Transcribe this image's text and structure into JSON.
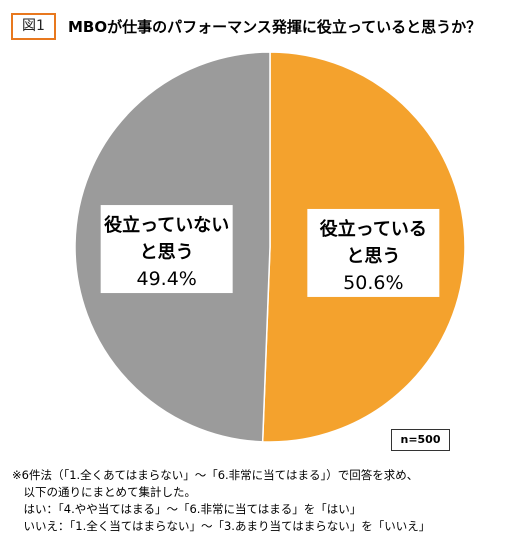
{
  "figure": {
    "label": "図1",
    "title": "MBOが仕事のパフォーマンス発揮に役立っていると思うか？",
    "sample_size": "n=500"
  },
  "chart_data": {
    "type": "pie",
    "title": "MBOが仕事のパフォーマンス発揮に役立っていると思うか？",
    "start": "12 o'clock",
    "direction": "clockwise",
    "slices": [
      {
        "label_lines": [
          "役立っている",
          "と思う"
        ],
        "value": 50.6,
        "value_label": "50.6%",
        "color": "#f4a22d"
      },
      {
        "label_lines": [
          "役立っていない",
          "と思う"
        ],
        "value": 49.4,
        "value_label": "49.4%",
        "color": "#9b9b9b"
      }
    ],
    "legend": "none (labels inside slices)"
  },
  "notes": [
    "※6件法（「1.全くあてはまらない」〜「6.非常に当てはまる」）で回答を求め、",
    "　以下の通りにまとめて集計した。",
    "　はい：「4.やや当てはまる」〜「6.非常に当てはまる」を「はい」",
    "　いいえ：「1.全く当てはまらない」〜「3.あまり当てはまらない」を「いいえ」"
  ]
}
